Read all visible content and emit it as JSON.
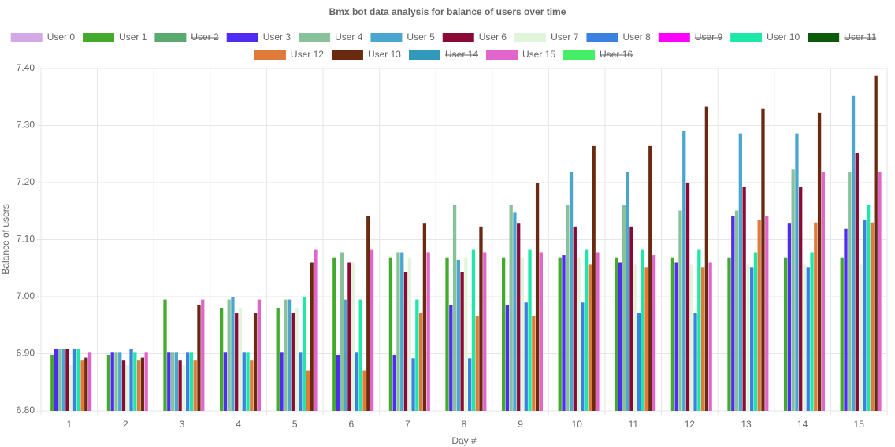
{
  "chart_data": {
    "type": "bar",
    "title": "Bmx bot data analysis for balance of users over time",
    "x_label": "Day #",
    "y_label": "Balance of users",
    "categories": [
      "1",
      "2",
      "3",
      "4",
      "5",
      "6",
      "7",
      "8",
      "9",
      "10",
      "11",
      "12",
      "13",
      "14",
      "15"
    ],
    "ylim": [
      6.8,
      7.4
    ],
    "yticks": [
      {
        "value": 6.8,
        "label": "6.80"
      },
      {
        "value": 6.9,
        "label": "6.90"
      },
      {
        "value": 7.0,
        "label": "7.00"
      },
      {
        "value": 7.1,
        "label": "7.10"
      },
      {
        "value": 7.2,
        "label": "7.20"
      },
      {
        "value": 7.3,
        "label": "7.30"
      },
      {
        "value": 7.4,
        "label": "7.40"
      }
    ],
    "grid": true,
    "legend": "top",
    "series": [
      {
        "name": "User 0",
        "color": "#d2a8e6",
        "hidden": false,
        "values": [
          6.8,
          6.8,
          6.8,
          6.8,
          6.8,
          6.8,
          6.8,
          6.8,
          6.8,
          6.8,
          6.8,
          6.8,
          6.8,
          6.8,
          6.8
        ]
      },
      {
        "name": "User 1",
        "color": "#44aa2d",
        "hidden": false,
        "values": [
          6.898,
          6.898,
          6.995,
          6.98,
          6.98,
          7.068,
          7.068,
          7.068,
          7.068,
          7.068,
          7.068,
          7.068,
          7.068,
          7.068,
          7.068
        ]
      },
      {
        "name": "User 2",
        "color": "#5aaa6e",
        "hidden": true,
        "values": [
          null,
          null,
          null,
          null,
          null,
          null,
          null,
          null,
          null,
          null,
          null,
          null,
          null,
          null,
          null
        ]
      },
      {
        "name": "User 3",
        "color": "#4f2cf0",
        "hidden": false,
        "values": [
          6.908,
          6.903,
          6.903,
          6.903,
          6.903,
          6.898,
          6.898,
          6.985,
          6.985,
          7.073,
          7.06,
          7.06,
          7.142,
          7.128,
          7.119
        ]
      },
      {
        "name": "User 4",
        "color": "#88c19a",
        "hidden": false,
        "values": [
          6.908,
          6.903,
          6.903,
          6.995,
          6.995,
          7.078,
          7.078,
          7.16,
          7.16,
          7.16,
          7.16,
          7.151,
          7.151,
          7.223,
          7.219
        ]
      },
      {
        "name": "User 5",
        "color": "#4aa6cf",
        "hidden": false,
        "values": [
          6.908,
          6.903,
          6.903,
          6.999,
          6.995,
          6.995,
          7.078,
          7.065,
          7.147,
          7.219,
          7.219,
          7.29,
          7.286,
          7.286,
          7.352
        ]
      },
      {
        "name": "User 6",
        "color": "#8b0a35",
        "hidden": false,
        "values": [
          6.908,
          6.888,
          6.888,
          6.971,
          6.971,
          7.06,
          7.043,
          7.043,
          7.128,
          7.123,
          7.123,
          7.2,
          7.193,
          7.193,
          7.252
        ]
      },
      {
        "name": "User 7",
        "color": "#e0f5dc",
        "hidden": false,
        "values": [
          6.88,
          6.88,
          6.88,
          6.98,
          6.98,
          7.06,
          7.068,
          7.068,
          7.068,
          7.068,
          7.056,
          7.056,
          7.056,
          7.056,
          7.056
        ]
      },
      {
        "name": "User 8",
        "color": "#3b82e0",
        "hidden": false,
        "values": [
          6.908,
          6.908,
          6.903,
          6.903,
          6.903,
          6.903,
          6.892,
          6.892,
          6.99,
          6.99,
          6.971,
          6.971,
          7.052,
          7.052,
          7.134
        ]
      },
      {
        "name": "User 9",
        "color": "#ff00ff",
        "hidden": true,
        "values": [
          null,
          null,
          null,
          null,
          null,
          null,
          null,
          null,
          null,
          null,
          null,
          null,
          null,
          null,
          null
        ]
      },
      {
        "name": "User 10",
        "color": "#1ee8a8",
        "hidden": false,
        "values": [
          6.908,
          6.903,
          6.903,
          6.903,
          6.999,
          6.995,
          6.995,
          7.082,
          7.082,
          7.082,
          7.082,
          7.082,
          7.078,
          7.078,
          7.16
        ]
      },
      {
        "name": "User 11",
        "color": "#0a5a0a",
        "hidden": true,
        "values": [
          null,
          null,
          null,
          null,
          null,
          null,
          null,
          null,
          null,
          null,
          null,
          null,
          null,
          null,
          null
        ]
      },
      {
        "name": "User 12",
        "color": "#e07a3a",
        "hidden": false,
        "values": [
          6.888,
          6.888,
          6.888,
          6.888,
          6.871,
          6.871,
          6.971,
          6.966,
          6.966,
          7.056,
          7.052,
          7.052,
          7.134,
          7.13,
          7.13
        ]
      },
      {
        "name": "User 13",
        "color": "#6b2a10",
        "hidden": false,
        "values": [
          6.893,
          6.893,
          6.985,
          6.971,
          7.06,
          7.142,
          7.128,
          7.123,
          7.2,
          7.265,
          7.265,
          7.333,
          7.33,
          7.323,
          7.388
        ]
      },
      {
        "name": "User 14",
        "color": "#3399bb",
        "hidden": true,
        "values": [
          null,
          null,
          null,
          null,
          null,
          null,
          null,
          null,
          null,
          null,
          null,
          null,
          null,
          null,
          null
        ]
      },
      {
        "name": "User 15",
        "color": "#e066cc",
        "hidden": false,
        "values": [
          6.903,
          6.903,
          6.995,
          6.995,
          7.082,
          7.082,
          7.078,
          7.078,
          7.078,
          7.078,
          7.073,
          7.06,
          7.142,
          7.219,
          7.219
        ]
      },
      {
        "name": "User 16",
        "color": "#44ee66",
        "hidden": true,
        "values": [
          null,
          null,
          null,
          null,
          null,
          null,
          null,
          null,
          null,
          null,
          null,
          null,
          null,
          null,
          null
        ]
      }
    ]
  }
}
